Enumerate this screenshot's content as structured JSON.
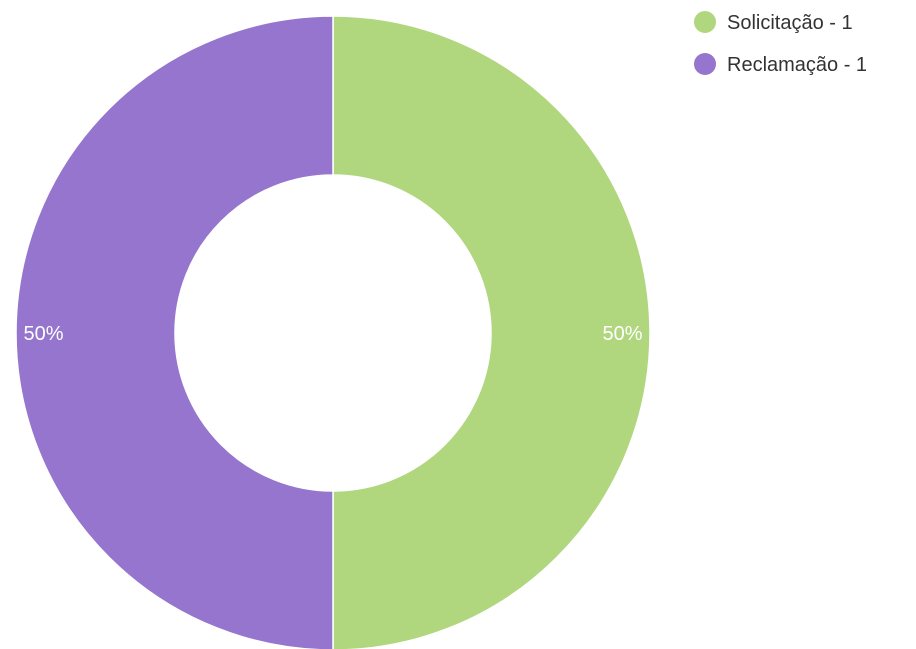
{
  "chart_data": {
    "type": "pie",
    "donut": true,
    "slices": [
      {
        "label": "Solicitação",
        "value": 1,
        "percent_label": "50%",
        "legend_text": "Solicitação - 1",
        "color": "#b0d67e"
      },
      {
        "label": "Reclamação",
        "value": 1,
        "percent_label": "50%",
        "legend_text": "Reclamação - 1",
        "color": "#9575cd"
      }
    ],
    "legend_position": "top-right",
    "title": ""
  }
}
